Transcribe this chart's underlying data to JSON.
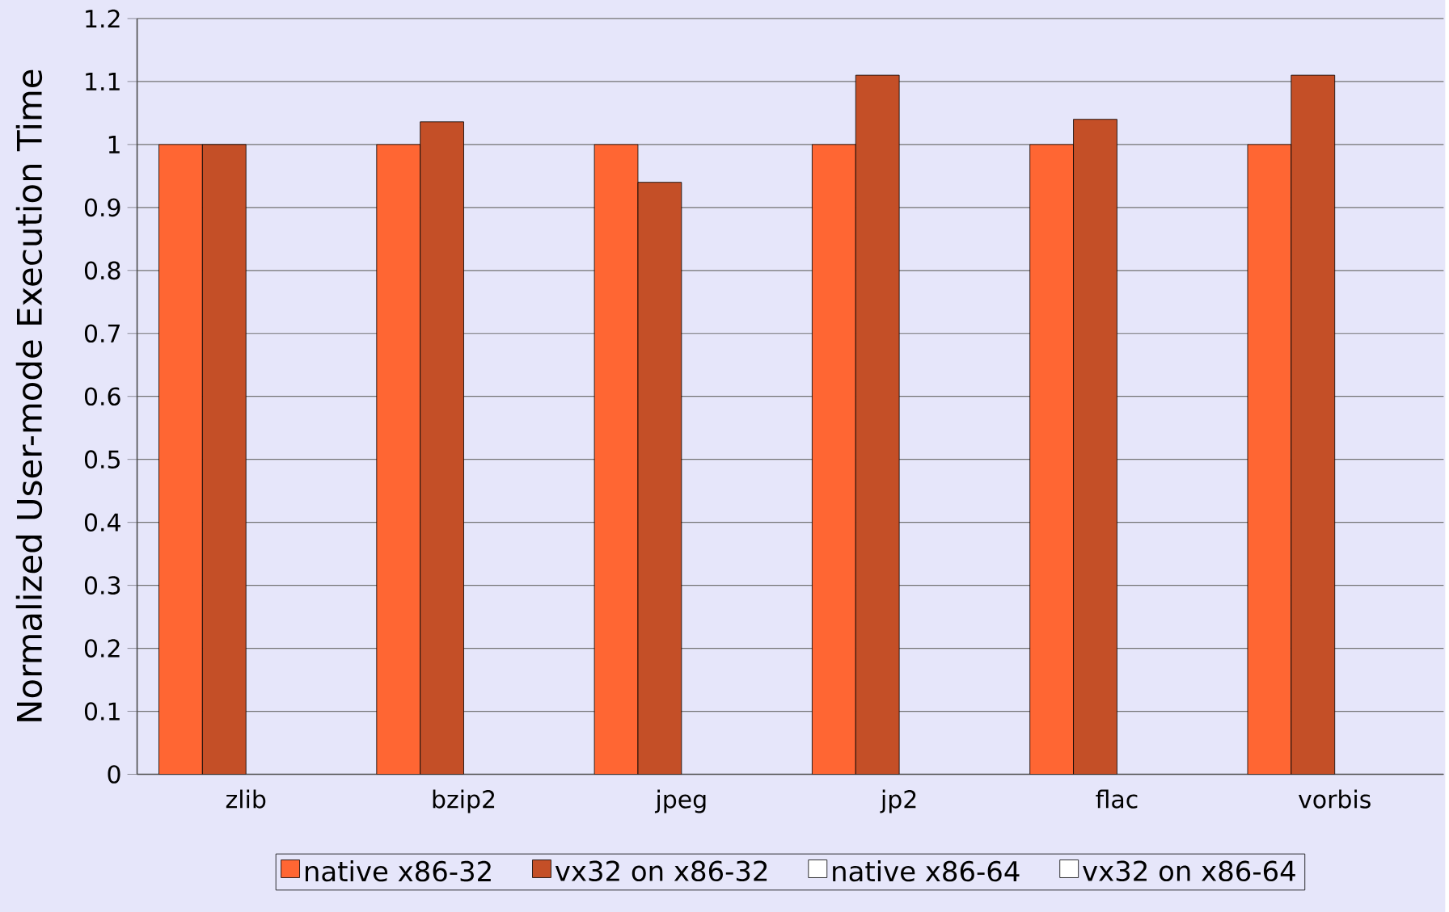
{
  "chart_data": {
    "type": "bar",
    "ylabel": "Normalized User-mode Execution Time",
    "categories": [
      "zlib",
      "bzip2",
      "jpeg",
      "jp2",
      "flac",
      "vorbis"
    ],
    "series": [
      {
        "name": "native x86-32",
        "color": "#ff6633",
        "values": [
          1,
          1,
          1,
          1,
          1,
          1
        ]
      },
      {
        "name": "vx32 on x86-32",
        "color": "#c44f27",
        "values": [
          1,
          1.036,
          0.94,
          1.11,
          1.04,
          1.11
        ]
      },
      {
        "name": "native x86-64",
        "color": "#ffffff",
        "values": [
          null,
          null,
          null,
          null,
          null,
          null
        ]
      },
      {
        "name": "vx32 on x86-64",
        "color": "#ffffff",
        "values": [
          null,
          null,
          null,
          null,
          null,
          null
        ]
      }
    ],
    "ylim": [
      0,
      1.2
    ],
    "yticks": [
      0,
      0.1,
      0.2,
      0.3,
      0.4,
      0.5,
      0.6,
      0.7,
      0.8,
      0.9,
      1,
      1.1,
      1.2
    ],
    "grid": "y",
    "legend": "bottom"
  }
}
